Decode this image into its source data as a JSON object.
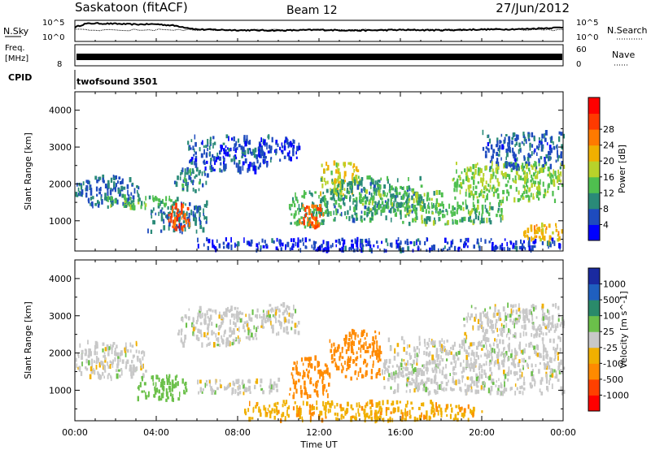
{
  "header": {
    "station": "Saskatoon (fitACF)",
    "beam": "Beam 12",
    "date": "27/Jun/2012"
  },
  "noise_panel": {
    "left_label": "N.Sky",
    "right_label": "N.Search",
    "y_top": "10^5",
    "y_bottom": "10^0"
  },
  "freq_panel": {
    "left_label_line1": "Freq.",
    "left_label_line2": "[MHz]",
    "left_top": "",
    "left_bottom": "8",
    "right_top": "60",
    "right_bottom": "0",
    "right_label": "Nave"
  },
  "cpid": {
    "label": "CPID",
    "value": "twofsound 3501"
  },
  "power_panel": {
    "ylabel": "Slant Range [km]",
    "yticks": [
      "1000",
      "2000",
      "3000",
      "4000"
    ],
    "colorbar_label": "Power [dB]",
    "colorbar_ticks": [
      "4",
      "8",
      "12",
      "16",
      "20",
      "24",
      "28"
    ],
    "colorbar_colors": [
      "#0000ff",
      "#1e4bbe",
      "#2a8a78",
      "#4fbf4f",
      "#b8d22a",
      "#f0b000",
      "#ff7a00",
      "#ff3a00",
      "#ff0000"
    ]
  },
  "velocity_panel": {
    "ylabel": "Slant Range [km]",
    "yticks": [
      "1000",
      "2000",
      "3000",
      "4000"
    ],
    "colorbar_label": "Velocity [m s^-1]",
    "colorbar_ticks": [
      "1000",
      "500",
      "100",
      "25",
      "-25",
      "-100",
      "-500",
      "-1000"
    ],
    "colorbar_colors": [
      "#1a2aa0",
      "#1f5fbf",
      "#2a8a6a",
      "#6bc04a",
      "#c8c8c8",
      "#f0b000",
      "#ff8a00",
      "#ff4000",
      "#ff0000"
    ]
  },
  "xaxis": {
    "label": "Time UT",
    "ticks": [
      "00:00",
      "04:00",
      "08:00",
      "12:00",
      "16:00",
      "20:00",
      "00:00"
    ]
  },
  "chart_data": [
    {
      "type": "line",
      "name": "noise",
      "x_range": [
        "00:00",
        "24:00"
      ],
      "y_scale": "log",
      "ylim": [
        1,
        100000
      ],
      "series": [
        {
          "name": "N.Sky",
          "x": [
            0,
            0.5,
            1,
            2,
            3,
            4,
            5,
            6,
            8,
            10,
            12,
            14,
            16,
            18,
            20,
            22,
            24
          ],
          "y": [
            3000,
            30000,
            40000,
            30000,
            20000,
            25000,
            8000,
            800,
            500,
            400,
            600,
            400,
            600,
            500,
            800,
            1000,
            3000
          ]
        }
      ]
    },
    {
      "type": "line",
      "name": "frequency",
      "x_range": [
        "00:00",
        "24:00"
      ],
      "series": [
        {
          "name": "Freq.",
          "x": [
            0,
            24
          ],
          "y": [
            11,
            11
          ]
        }
      ]
    },
    {
      "type": "heatmap",
      "name": "power",
      "x_range": [
        "00:00",
        "24:00"
      ],
      "ylim": [
        180,
        4500
      ],
      "units": "dB",
      "blobs": [
        {
          "t0": 0.0,
          "t1": 3.2,
          "r0": 1350,
          "r1": 2200,
          "v": 9
        },
        {
          "t0": 1.5,
          "t1": 5.0,
          "r0": 1350,
          "r1": 1650,
          "v": 13
        },
        {
          "t0": 3.5,
          "t1": 6.5,
          "r0": 700,
          "r1": 1500,
          "v": 9
        },
        {
          "t0": 4.5,
          "t1": 5.7,
          "r0": 750,
          "r1": 1450,
          "v": 26
        },
        {
          "t0": 4.8,
          "t1": 6.5,
          "r0": 1800,
          "r1": 2400,
          "v": 10
        },
        {
          "t0": 5.5,
          "t1": 9.5,
          "r0": 2300,
          "r1": 3300,
          "v": 7
        },
        {
          "t0": 9.0,
          "t1": 11.0,
          "r0": 2600,
          "r1": 3300,
          "v": 6
        },
        {
          "t0": 10.5,
          "t1": 12.5,
          "r0": 800,
          "r1": 1800,
          "v": 12
        },
        {
          "t0": 11.0,
          "t1": 12.2,
          "r0": 800,
          "r1": 1500,
          "v": 25
        },
        {
          "t0": 12.0,
          "t1": 14.0,
          "r0": 1700,
          "r1": 2600,
          "v": 18
        },
        {
          "t0": 12.0,
          "t1": 17.0,
          "r0": 1000,
          "r1": 2200,
          "v": 11
        },
        {
          "t0": 14.0,
          "t1": 18.0,
          "r0": 1200,
          "r1": 1800,
          "v": 14
        },
        {
          "t0": 16.0,
          "t1": 21.0,
          "r0": 900,
          "r1": 1500,
          "v": 13
        },
        {
          "t0": 18.5,
          "t1": 24.0,
          "r0": 1500,
          "r1": 2600,
          "v": 15
        },
        {
          "t0": 20.0,
          "t1": 24.0,
          "r0": 2400,
          "r1": 3400,
          "v": 8
        },
        {
          "t0": 22.0,
          "t1": 24.0,
          "r0": 400,
          "r1": 900,
          "v": 20
        },
        {
          "t0": 6.0,
          "t1": 24.0,
          "r0": 180,
          "r1": 500,
          "v": 6
        }
      ]
    },
    {
      "type": "heatmap",
      "name": "velocity",
      "x_range": [
        "00:00",
        "24:00"
      ],
      "ylim": [
        180,
        4500
      ],
      "units": "m s^-1",
      "blobs": [
        {
          "t0": 0.0,
          "t1": 3.5,
          "r0": 1300,
          "r1": 2300,
          "v": 0
        },
        {
          "t0": 3.0,
          "t1": 5.5,
          "r0": 700,
          "r1": 1400,
          "v": 60
        },
        {
          "t0": 5.0,
          "t1": 9.0,
          "r0": 2200,
          "r1": 3200,
          "v": 0
        },
        {
          "t0": 9.0,
          "t1": 11.0,
          "r0": 2500,
          "r1": 3300,
          "v": 0
        },
        {
          "t0": 10.5,
          "t1": 12.5,
          "r0": 800,
          "r1": 1900,
          "v": -300
        },
        {
          "t0": 12.5,
          "t1": 15.0,
          "r0": 1300,
          "r1": 2600,
          "v": -250
        },
        {
          "t0": 8.0,
          "t1": 20.0,
          "r0": 180,
          "r1": 700,
          "v": -80
        },
        {
          "t0": 15.0,
          "t1": 24.0,
          "r0": 900,
          "r1": 2400,
          "v": 0
        },
        {
          "t0": 19.0,
          "t1": 24.0,
          "r0": 2400,
          "r1": 3300,
          "v": 0
        },
        {
          "t0": 6.0,
          "t1": 10.0,
          "r0": 900,
          "r1": 1300,
          "v": 0
        }
      ]
    }
  ]
}
